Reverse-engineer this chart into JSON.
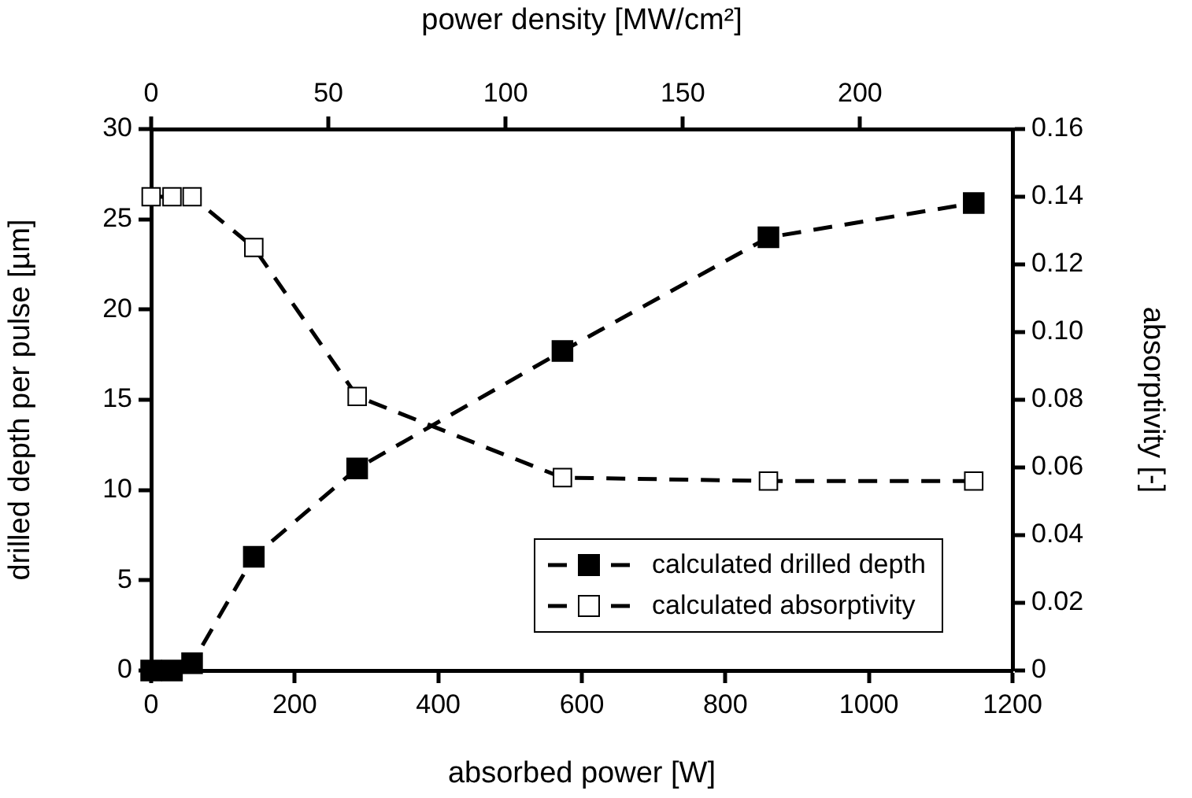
{
  "chart_data": {
    "type": "line",
    "xlabel": "absorbed power [W]",
    "ylabel": "drilled depth per pulse [µm]",
    "y2label": "absorptivity [-]",
    "x2label": "power density [MW/cm²]",
    "x": [
      0,
      29,
      57,
      143,
      287,
      573,
      860,
      1146
    ],
    "series": [
      {
        "name": "calculated drilled depth",
        "color": "#000000",
        "values": [
          0,
          0,
          0.4,
          6.3,
          11.2,
          17.7,
          24,
          25.9
        ]
      },
      {
        "name": "calculated absorptivity",
        "color": "#000000",
        "axis": "y2",
        "values": [
          0.14,
          0.14,
          0.14,
          0.125,
          0.081,
          0.057,
          0.056,
          0.056
        ]
      }
    ],
    "xlim": [
      0,
      1200
    ],
    "xticks": [
      0,
      200,
      400,
      600,
      800,
      1000,
      1200
    ],
    "x2lim": [
      0,
      243
    ],
    "x2ticks": [
      0,
      50,
      100,
      150,
      200
    ],
    "ylim": [
      0,
      30
    ],
    "yticks": [
      0,
      5,
      10,
      15,
      20,
      25,
      30
    ],
    "y2lim": [
      0,
      0.16
    ],
    "y2ticks": [
      {
        "value": 0,
        "label": "0"
      },
      0.02,
      0.04,
      0.06,
      0.08,
      {
        "value": 0.1,
        "label": "0.10"
      },
      0.12,
      0.14,
      0.16
    ],
    "grid": false,
    "legend": "bottom right",
    "marker": "square",
    "line_style": "dashed"
  }
}
